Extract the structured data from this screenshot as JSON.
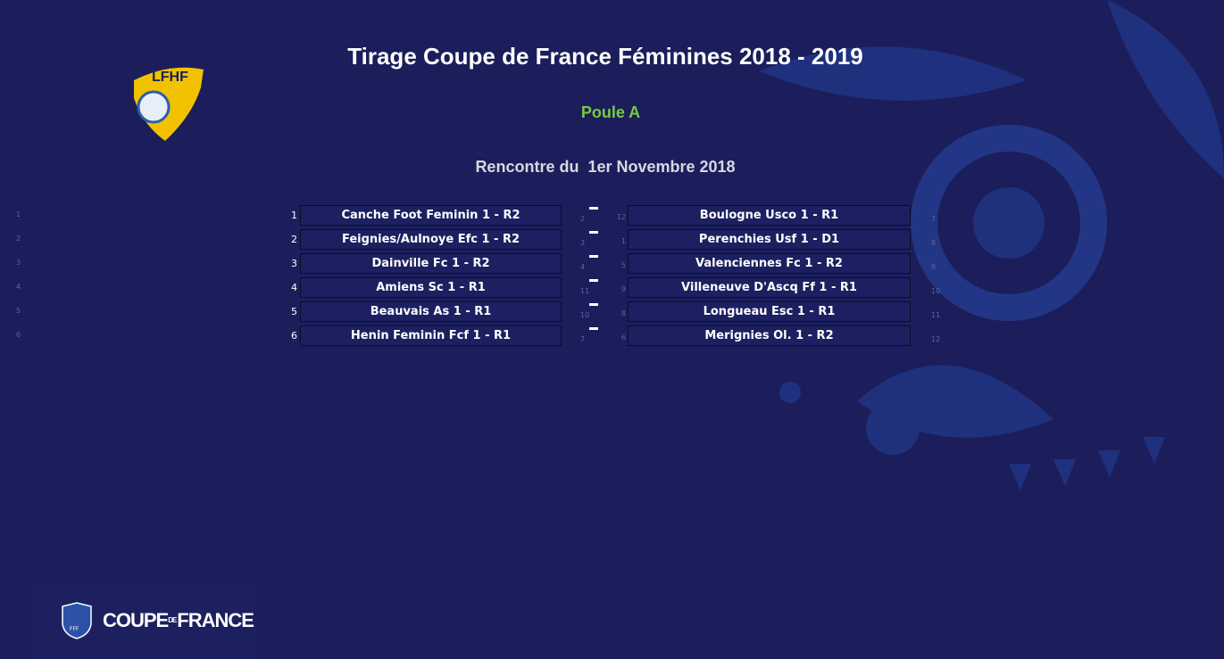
{
  "header": {
    "title": "Tirage Coupe de France Féminines 2018 - 2019",
    "group": "Poule A",
    "date": "Rencontre du  1er Novembre 2018"
  },
  "logo": {
    "text": "LFHF"
  },
  "footer_logo": {
    "badge": "FFF",
    "word1": "COUPE",
    "word2": "DE",
    "word3": "FRANCE"
  },
  "side_numbers": [
    1,
    2,
    3,
    4,
    5,
    6
  ],
  "matches": [
    {
      "home_no": 1,
      "home": "Canche Foot Feminin 1 - R2",
      "mid_no": 2,
      "away_no": 12,
      "away": "Boulogne Usco 1 - R1",
      "right_no": 7
    },
    {
      "home_no": 2,
      "home": "Feignies/Aulnoye Efc 1 - R2",
      "mid_no": 3,
      "away_no": 1,
      "away": "Perenchies Usf 1 - D1",
      "right_no": 8
    },
    {
      "home_no": 3,
      "home": "Dainville Fc 1 - R2",
      "mid_no": 4,
      "away_no": 5,
      "away": "Valenciennes Fc 1 - R2",
      "right_no": 9
    },
    {
      "home_no": 4,
      "home": "Amiens Sc 1 - R1",
      "mid_no": 11,
      "away_no": 9,
      "away": "Villeneuve D'Ascq Ff 1 - R1",
      "right_no": 10
    },
    {
      "home_no": 5,
      "home": "Beauvais As 1 - R1",
      "mid_no": 10,
      "away_no": 8,
      "away": "Longueau Esc 1 - R1",
      "right_no": 11
    },
    {
      "home_no": 6,
      "home": "Henin Feminin Fcf 1 - R1",
      "mid_no": 7,
      "away_no": 6,
      "away": "Merignies Ol. 1 - R2",
      "right_no": 12
    }
  ]
}
